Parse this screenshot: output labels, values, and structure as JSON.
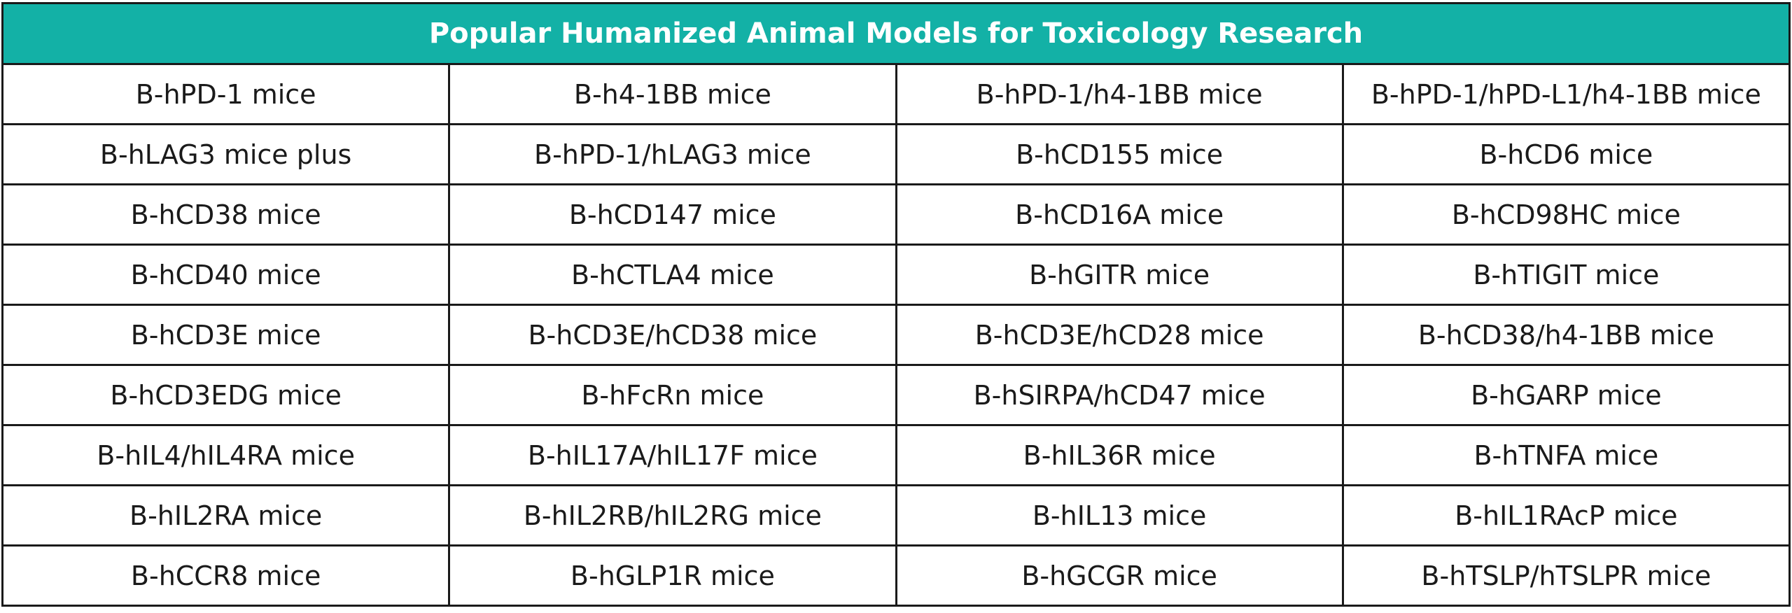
{
  "table": {
    "title": "Popular Humanized Animal Models for Toxicology Research",
    "rows": [
      [
        "B-hPD-1 mice",
        "B-h4-1BB mice",
        "B-hPD-1/h4-1BB mice",
        "B-hPD-1/hPD-L1/h4-1BB mice"
      ],
      [
        "B-hLAG3 mice plus",
        "B-hPD-1/hLAG3 mice",
        "B-hCD155 mice",
        "B-hCD6 mice"
      ],
      [
        "B-hCD38 mice",
        "B-hCD147 mice",
        "B-hCD16A mice",
        "B-hCD98HC mice"
      ],
      [
        "B-hCD40 mice",
        "B-hCTLA4 mice",
        "B-hGITR mice",
        "B-hTIGIT mice"
      ],
      [
        "B-hCD3E mice",
        "B-hCD3E/hCD38 mice",
        "B-hCD3E/hCD28 mice",
        "B-hCD38/h4-1BB mice"
      ],
      [
        "B-hCD3EDG mice",
        "B-hFcRn mice",
        "B-hSIRPA/hCD47 mice",
        "B-hGARP mice"
      ],
      [
        "B-hIL4/hIL4RA mice",
        "B-hIL17A/hIL17F mice",
        "B-hIL36R mice",
        "B-hTNFA mice"
      ],
      [
        "B-hIL2RA mice",
        "B-hIL2RB/hIL2RG mice",
        "B-hIL13 mice",
        "B-hIL1RAcP mice"
      ],
      [
        "B-hCCR8 mice",
        "B-hGLP1R mice",
        "B-hGCGR mice",
        "B-hTSLP/hTSLPR mice"
      ]
    ]
  }
}
